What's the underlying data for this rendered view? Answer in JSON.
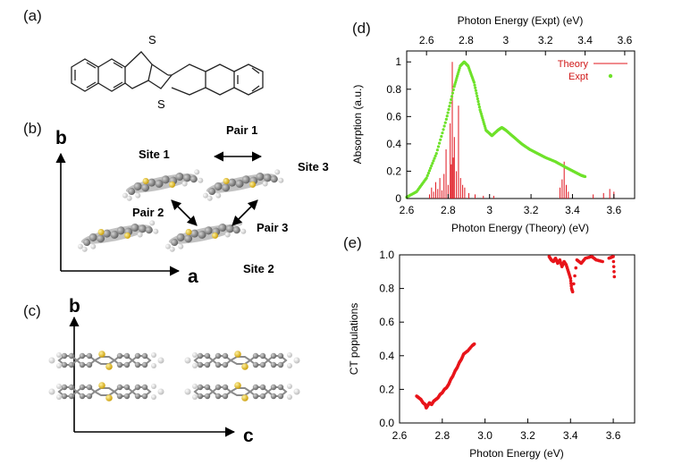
{
  "panels": {
    "a": {
      "label": "(a)",
      "atoms": [
        "S",
        "S"
      ]
    },
    "b": {
      "label": "(b)",
      "axis_y": "b",
      "axis_x": "a",
      "sites": [
        "Site 1",
        "Site 2",
        "Site 3"
      ],
      "pairs": [
        "Pair 1",
        "Pair 2",
        "Pair 3"
      ]
    },
    "c": {
      "label": "(c)",
      "axis_y": "b",
      "axis_x": "c"
    },
    "d": {
      "label": "(d)"
    },
    "e": {
      "label": "(e)"
    }
  },
  "colors": {
    "theory": "#e0141e",
    "expt": "#6ee22a",
    "scatter": "#e8141a",
    "carbon": "#8c8c8c",
    "hydrogen": "#eeeeee",
    "sulfur": "#e8c21a"
  },
  "chart_data": [
    {
      "type": "line",
      "id": "absorption",
      "title": "",
      "xlabel": "Photon Energy (Theory) (eV)",
      "x2label": "Photon Energy (Expt) (eV)",
      "ylabel": "Absorption (a.u.)",
      "xlim": [
        2.6,
        3.7
      ],
      "x2lim": [
        2.5,
        3.65
      ],
      "ylim": [
        0,
        1.08
      ],
      "xticks": [
        "2.6",
        "2.8",
        "3",
        "3.2",
        "3.4",
        "3.6"
      ],
      "x2ticks": [
        "2.6",
        "2.8",
        "3",
        "3.2",
        "3.4",
        "3.6"
      ],
      "yticks": [
        "0",
        "0.2",
        "0.4",
        "0.6",
        "0.8",
        "1"
      ],
      "legend_position": "top-right",
      "series": [
        {
          "name": "Theory",
          "style": "sticks",
          "points": [
            [
              2.71,
              0.03
            ],
            [
              2.72,
              0.08
            ],
            [
              2.73,
              0.05
            ],
            [
              2.74,
              0.12
            ],
            [
              2.75,
              0.07
            ],
            [
              2.76,
              0.15
            ],
            [
              2.77,
              0.06
            ],
            [
              2.78,
              0.18
            ],
            [
              2.79,
              0.36
            ],
            [
              2.8,
              0.1
            ],
            [
              2.81,
              0.55
            ],
            [
              2.815,
              0.25
            ],
            [
              2.82,
              1.0
            ],
            [
              2.825,
              0.3
            ],
            [
              2.83,
              0.45
            ],
            [
              2.84,
              0.2
            ],
            [
              2.85,
              0.68
            ],
            [
              2.86,
              0.15
            ],
            [
              2.87,
              0.1
            ],
            [
              2.88,
              0.08
            ],
            [
              2.9,
              0.04
            ],
            [
              2.93,
              0.03
            ],
            [
              2.97,
              0.02
            ],
            [
              3.02,
              0.02
            ],
            [
              3.34,
              0.08
            ],
            [
              3.35,
              0.14
            ],
            [
              3.36,
              0.27
            ],
            [
              3.37,
              0.1
            ],
            [
              3.38,
              0.05
            ],
            [
              3.5,
              0.03
            ],
            [
              3.55,
              0.04
            ],
            [
              3.58,
              0.07
            ],
            [
              3.6,
              0.05
            ]
          ]
        },
        {
          "name": "Expt",
          "style": "markers",
          "points": [
            [
              2.5,
              0.01
            ],
            [
              2.55,
              0.05
            ],
            [
              2.6,
              0.15
            ],
            [
              2.65,
              0.33
            ],
            [
              2.7,
              0.58
            ],
            [
              2.74,
              0.82
            ],
            [
              2.77,
              0.97
            ],
            [
              2.79,
              1.0
            ],
            [
              2.81,
              0.97
            ],
            [
              2.84,
              0.85
            ],
            [
              2.87,
              0.65
            ],
            [
              2.9,
              0.5
            ],
            [
              2.93,
              0.46
            ],
            [
              2.96,
              0.5
            ],
            [
              2.98,
              0.52
            ],
            [
              3.0,
              0.5
            ],
            [
              3.04,
              0.45
            ],
            [
              3.08,
              0.4
            ],
            [
              3.12,
              0.36
            ],
            [
              3.16,
              0.33
            ],
            [
              3.2,
              0.3
            ],
            [
              3.25,
              0.27
            ],
            [
              3.3,
              0.23
            ],
            [
              3.34,
              0.2
            ],
            [
              3.38,
              0.17
            ],
            [
              3.4,
              0.16
            ]
          ]
        }
      ]
    },
    {
      "type": "scatter",
      "id": "ct-populations",
      "title": "",
      "xlabel": "Photon Energy (eV)",
      "ylabel": "CT populations",
      "xlim": [
        2.6,
        3.7
      ],
      "ylim": [
        0,
        1.0
      ],
      "xticks": [
        "2.6",
        "2.8",
        "3.0",
        "3.2",
        "3.4",
        "3.6"
      ],
      "yticks": [
        "0.0",
        "0.2",
        "0.4",
        "0.6",
        "0.8",
        "1.0"
      ],
      "series": [
        {
          "name": "CT",
          "points": [
            [
              2.68,
              0.16
            ],
            [
              2.69,
              0.15
            ],
            [
              2.7,
              0.14
            ],
            [
              2.71,
              0.12
            ],
            [
              2.72,
              0.11
            ],
            [
              2.725,
              0.09
            ],
            [
              2.73,
              0.1
            ],
            [
              2.74,
              0.12
            ],
            [
              2.75,
              0.11
            ],
            [
              2.76,
              0.13
            ],
            [
              2.77,
              0.14
            ],
            [
              2.78,
              0.15
            ],
            [
              2.79,
              0.17
            ],
            [
              2.8,
              0.18
            ],
            [
              2.81,
              0.2
            ],
            [
              2.82,
              0.21
            ],
            [
              2.83,
              0.23
            ],
            [
              2.84,
              0.26
            ],
            [
              2.85,
              0.28
            ],
            [
              2.86,
              0.31
            ],
            [
              2.87,
              0.33
            ],
            [
              2.88,
              0.36
            ],
            [
              2.89,
              0.38
            ],
            [
              2.9,
              0.41
            ],
            [
              2.92,
              0.43
            ],
            [
              2.94,
              0.46
            ],
            [
              2.95,
              0.47
            ],
            [
              3.3,
              0.99
            ],
            [
              3.31,
              0.97
            ],
            [
              3.32,
              0.96
            ],
            [
              3.33,
              0.98
            ],
            [
              3.34,
              0.95
            ],
            [
              3.35,
              0.97
            ],
            [
              3.36,
              0.93
            ],
            [
              3.37,
              0.96
            ],
            [
              3.38,
              0.94
            ],
            [
              3.39,
              0.9
            ],
            [
              3.4,
              0.86
            ],
            [
              3.405,
              0.8
            ],
            [
              3.41,
              0.78
            ],
            [
              3.43,
              0.97
            ],
            [
              3.45,
              0.95
            ],
            [
              3.47,
              0.98
            ],
            [
              3.5,
              0.99
            ],
            [
              3.52,
              0.97
            ],
            [
              3.55,
              0.96
            ],
            [
              3.58,
              0.98
            ],
            [
              3.6,
              0.99
            ],
            [
              3.605,
              0.87
            ]
          ]
        }
      ]
    }
  ]
}
